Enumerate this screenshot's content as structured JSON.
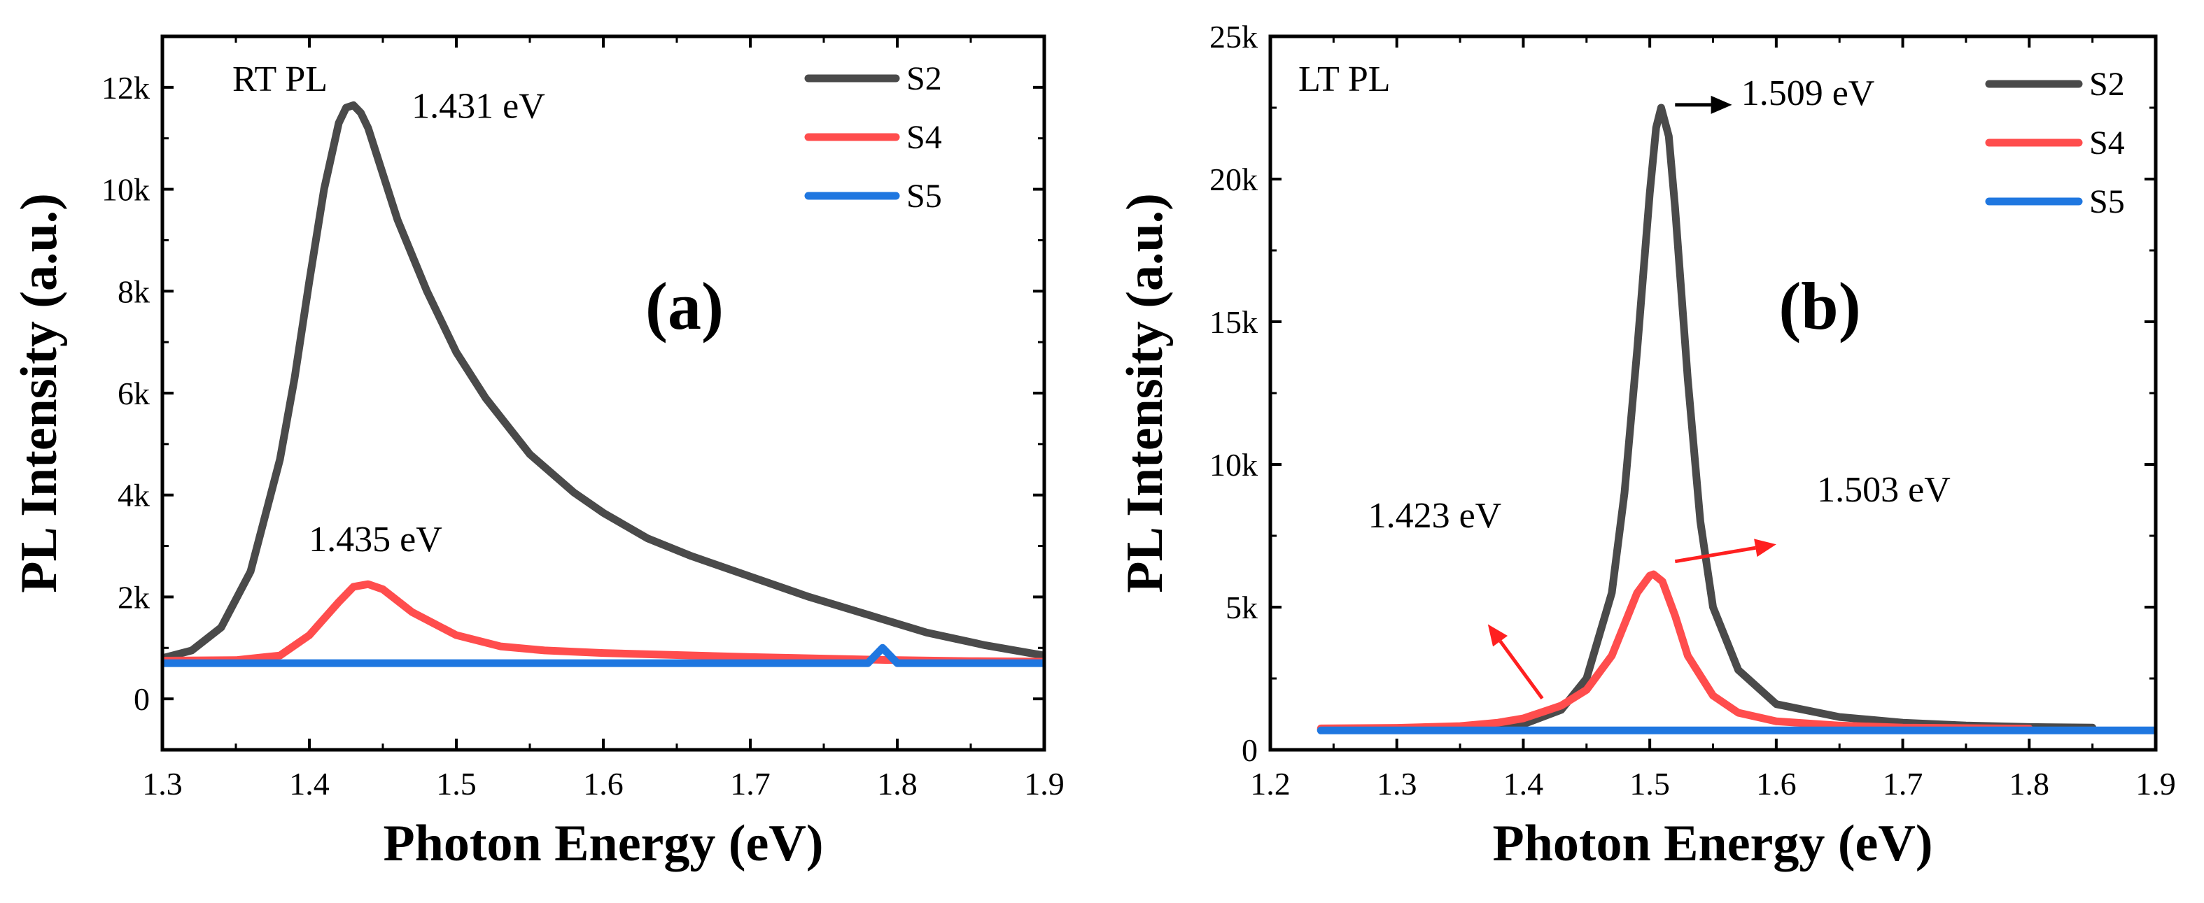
{
  "chart_data": [
    {
      "type": "line",
      "panel_label": "(a)",
      "corner_label": "RT PL",
      "xlabel": "Photon Energy (eV)",
      "ylabel": "PL Intensity (a.u.)",
      "xlim": [
        1.3,
        1.9
      ],
      "ylim": [
        -1000,
        13000
      ],
      "x_ticks": [
        1.3,
        1.4,
        1.5,
        1.6,
        1.7,
        1.8,
        1.9
      ],
      "x_tick_labels": [
        "1.3",
        "1.4",
        "1.5",
        "1.6",
        "1.7",
        "1.8",
        "1.9"
      ],
      "y_ticks": [
        0,
        2000,
        4000,
        6000,
        8000,
        10000,
        12000
      ],
      "y_tick_labels": [
        "0",
        "2k",
        "4k",
        "6k",
        "8k",
        "10k",
        "12k"
      ],
      "legend": [
        "S2",
        "S4",
        "S5"
      ],
      "series": [
        {
          "name": "S2",
          "color": "#4a4a4a",
          "x": [
            1.3,
            1.32,
            1.34,
            1.36,
            1.38,
            1.39,
            1.4,
            1.41,
            1.42,
            1.425,
            1.43,
            1.435,
            1.44,
            1.45,
            1.46,
            1.47,
            1.48,
            1.5,
            1.52,
            1.55,
            1.58,
            1.6,
            1.63,
            1.66,
            1.7,
            1.74,
            1.78,
            1.82,
            1.86,
            1.9
          ],
          "y": [
            800,
            950,
            1400,
            2500,
            4700,
            6300,
            8200,
            10000,
            11300,
            11600,
            11650,
            11500,
            11200,
            10300,
            9400,
            8700,
            8000,
            6800,
            5900,
            4800,
            4050,
            3650,
            3150,
            2800,
            2400,
            2000,
            1650,
            1300,
            1050,
            850
          ]
        },
        {
          "name": "S4",
          "color": "#ff4d4d",
          "x": [
            1.3,
            1.35,
            1.38,
            1.4,
            1.42,
            1.43,
            1.44,
            1.45,
            1.47,
            1.5,
            1.53,
            1.56,
            1.6,
            1.65,
            1.7,
            1.75,
            1.8,
            1.85,
            1.9
          ],
          "y": [
            750,
            760,
            850,
            1250,
            1900,
            2200,
            2250,
            2150,
            1700,
            1250,
            1030,
            950,
            900,
            860,
            820,
            790,
            760,
            740,
            730
          ]
        },
        {
          "name": "S5",
          "color": "#1f77e0",
          "x": [
            1.3,
            1.6,
            1.78,
            1.785,
            1.79,
            1.795,
            1.8,
            1.9
          ],
          "y": [
            700,
            700,
            700,
            850,
            1000,
            850,
            700,
            700
          ]
        }
      ],
      "annotations": [
        {
          "text": "1.431 eV",
          "x": 1.515,
          "y": 11400,
          "color": "#000000"
        },
        {
          "text": "1.435 eV",
          "x": 1.445,
          "y": 2900,
          "color": "#ff3030"
        }
      ]
    },
    {
      "type": "line",
      "panel_label": "(b)",
      "corner_label": "LT PL",
      "xlabel": "Photon Energy (eV)",
      "ylabel": "PL Intensity (a.u.)",
      "xlim": [
        1.2,
        1.9
      ],
      "ylim": [
        0,
        25000
      ],
      "x_ticks": [
        1.2,
        1.3,
        1.4,
        1.5,
        1.6,
        1.7,
        1.8,
        1.9
      ],
      "x_tick_labels": [
        "1.2",
        "1.3",
        "1.4",
        "1.5",
        "1.6",
        "1.7",
        "1.8",
        "1.9"
      ],
      "y_ticks": [
        0,
        5000,
        10000,
        15000,
        20000,
        25000
      ],
      "y_tick_labels": [
        "0",
        "5k",
        "10k",
        "15k",
        "20k",
        "25k"
      ],
      "legend": [
        "S2",
        "S4",
        "S5"
      ],
      "series": [
        {
          "name": "S2",
          "color": "#4a4a4a",
          "x": [
            1.24,
            1.3,
            1.35,
            1.4,
            1.43,
            1.45,
            1.47,
            1.48,
            1.49,
            1.5,
            1.505,
            1.509,
            1.515,
            1.52,
            1.53,
            1.54,
            1.55,
            1.57,
            1.6,
            1.65,
            1.7,
            1.75,
            1.8,
            1.85
          ],
          "y": [
            700,
            720,
            760,
            900,
            1400,
            2500,
            5500,
            9000,
            14000,
            19500,
            21800,
            22500,
            21500,
            19000,
            13000,
            8000,
            5000,
            2800,
            1600,
            1150,
            950,
            850,
            800,
            780
          ]
        },
        {
          "name": "S4",
          "color": "#ff4d4d",
          "x": [
            1.24,
            1.3,
            1.35,
            1.38,
            1.4,
            1.42,
            1.43,
            1.45,
            1.47,
            1.48,
            1.49,
            1.5,
            1.503,
            1.51,
            1.52,
            1.53,
            1.55,
            1.57,
            1.6,
            1.65,
            1.7,
            1.8
          ],
          "y": [
            750,
            770,
            830,
            950,
            1100,
            1400,
            1550,
            2100,
            3300,
            4400,
            5500,
            6100,
            6150,
            5900,
            4700,
            3300,
            1900,
            1300,
            1000,
            850,
            780,
            740
          ]
        },
        {
          "name": "S5",
          "color": "#1f77e0",
          "x": [
            1.24,
            1.9
          ],
          "y": [
            680,
            680
          ]
        }
      ],
      "annotations": [
        {
          "text": "1.509 eV",
          "x": 1.625,
          "y": 22600,
          "color": "#000000"
        },
        {
          "text": "1.503 eV",
          "x": 1.685,
          "y": 8700,
          "color": "#ff3030"
        },
        {
          "text": "1.423 eV",
          "x": 1.33,
          "y": 7800,
          "color": "#ff3030"
        }
      ],
      "arrows": [
        {
          "color": "#000000",
          "from": [
            1.52,
            22600
          ],
          "to": [
            1.565,
            22600
          ]
        },
        {
          "color": "#ff2020",
          "from": [
            1.52,
            6600
          ],
          "to": [
            1.6,
            7200
          ]
        },
        {
          "color": "#ff2020",
          "from": [
            1.415,
            1800
          ],
          "to": [
            1.372,
            4400
          ]
        }
      ]
    }
  ]
}
